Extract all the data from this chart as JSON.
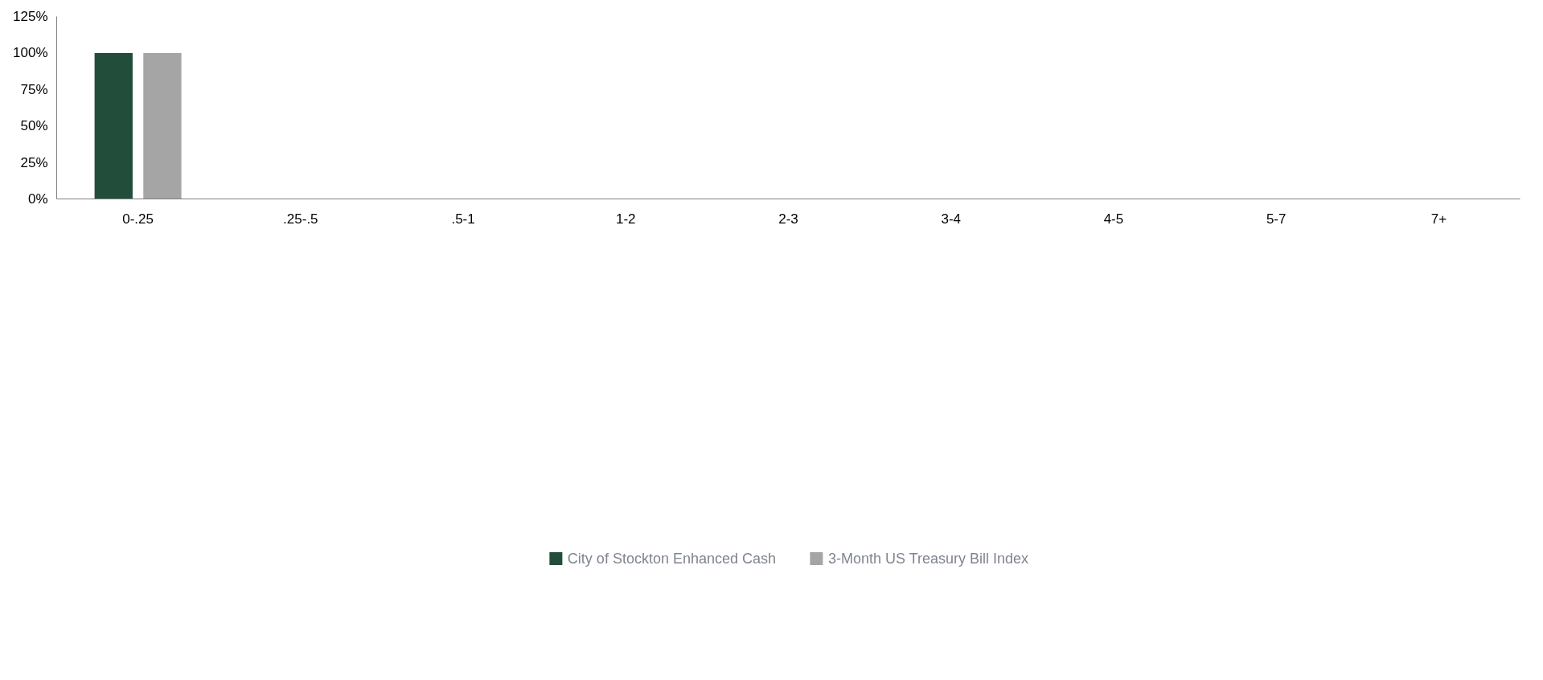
{
  "chart_data": {
    "type": "bar",
    "categories": [
      "0-.25",
      ".25-.5",
      ".5-1",
      "1-2",
      "2-3",
      "3-4",
      "4-5",
      "5-7",
      "7+"
    ],
    "series": [
      {
        "name": "City of Stockton Enhanced Cash",
        "color": "#214d3a",
        "values": [
          100,
          0,
          0,
          0,
          0,
          0,
          0,
          0,
          0
        ]
      },
      {
        "name": "3-Month US Treasury Bill Index",
        "color": "#a5a5a5",
        "values": [
          100,
          0,
          0,
          0,
          0,
          0,
          0,
          0,
          0
        ]
      }
    ],
    "ylim": [
      0,
      125
    ],
    "yticks": [
      {
        "value": 0,
        "label": "0%"
      },
      {
        "value": 25,
        "label": "25%"
      },
      {
        "value": 50,
        "label": "50%"
      },
      {
        "value": 75,
        "label": "75%"
      },
      {
        "value": 100,
        "label": "100%"
      },
      {
        "value": 125,
        "label": "125%"
      }
    ],
    "grid": false,
    "legend": "bottom"
  }
}
